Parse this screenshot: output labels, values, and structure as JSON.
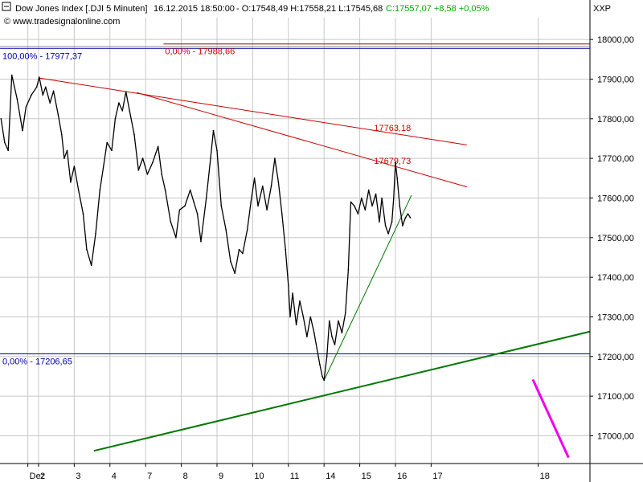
{
  "header": {
    "instrument": "Dow Jones Index [.DJI  5 Minuten]",
    "datetime": "16.12.2015 18:50:00",
    "ohlc": "- O:17548,49 H:17558,21 L:17545,68",
    "change": "C:17557,07 +8,58 +0,05%",
    "watermark": "© www.tradesignalonline.com",
    "axis_code": "XXP"
  },
  "colors": {
    "price": "#000000",
    "fib": "#0000aa",
    "resistance": "#cc0000",
    "support": "#007700",
    "channel": "#ee00ee",
    "change": "#00aa00",
    "grid": "#c8c8c8"
  },
  "chart_data": {
    "type": "line",
    "ylim": [
      16930,
      18055
    ],
    "y_ticks": [
      {
        "value": 17000,
        "label": "17000,00"
      },
      {
        "value": 17100,
        "label": "17100,00"
      },
      {
        "value": 17200,
        "label": "17200,00"
      },
      {
        "value": 17300,
        "label": "17300,00"
      },
      {
        "value": 17400,
        "label": "17400,00"
      },
      {
        "value": 17500,
        "label": "17500,00"
      },
      {
        "value": 17600,
        "label": "17600,00"
      },
      {
        "value": 17700,
        "label": "17700,00"
      },
      {
        "value": 17800,
        "label": "17800,00"
      },
      {
        "value": 17900,
        "label": "17900,00"
      },
      {
        "value": 18000,
        "label": "18000,00"
      }
    ],
    "x_ticks": [
      {
        "t": -0.3,
        "label": "Dez"
      },
      {
        "t": 0,
        "label": "2"
      },
      {
        "t": 1,
        "label": "3"
      },
      {
        "t": 2,
        "label": "4"
      },
      {
        "t": 3,
        "label": "7"
      },
      {
        "t": 4,
        "label": "8"
      },
      {
        "t": 5,
        "label": "9"
      },
      {
        "t": 6,
        "label": "10"
      },
      {
        "t": 7,
        "label": "11"
      },
      {
        "t": 8,
        "label": "14"
      },
      {
        "t": 9,
        "label": "15"
      },
      {
        "t": 10,
        "label": "16"
      },
      {
        "t": 11,
        "label": "17"
      },
      {
        "t": 14,
        "label": "18"
      }
    ],
    "xlim": [
      -1.08,
      15.45
    ],
    "price": [
      [
        -1.05,
        17800
      ],
      [
        -0.95,
        17740
      ],
      [
        -0.85,
        17720
      ],
      [
        -0.75,
        17910
      ],
      [
        -0.6,
        17850
      ],
      [
        -0.45,
        17770
      ],
      [
        -0.35,
        17830
      ],
      [
        -0.2,
        17860
      ],
      [
        -0.05,
        17880
      ],
      [
        0.02,
        17905
      ],
      [
        0.12,
        17860
      ],
      [
        0.2,
        17880
      ],
      [
        0.32,
        17840
      ],
      [
        0.42,
        17870
      ],
      [
        0.55,
        17810
      ],
      [
        0.65,
        17760
      ],
      [
        0.72,
        17700
      ],
      [
        0.8,
        17720
      ],
      [
        0.9,
        17640
      ],
      [
        1.0,
        17680
      ],
      [
        1.12,
        17620
      ],
      [
        1.25,
        17560
      ],
      [
        1.35,
        17470
      ],
      [
        1.48,
        17430
      ],
      [
        1.6,
        17510
      ],
      [
        1.72,
        17620
      ],
      [
        1.82,
        17680
      ],
      [
        1.92,
        17740
      ],
      [
        2.05,
        17720
      ],
      [
        2.15,
        17800
      ],
      [
        2.25,
        17840
      ],
      [
        2.35,
        17820
      ],
      [
        2.45,
        17868
      ],
      [
        2.55,
        17820
      ],
      [
        2.68,
        17760
      ],
      [
        2.8,
        17670
      ],
      [
        2.92,
        17700
      ],
      [
        3.05,
        17660
      ],
      [
        3.2,
        17690
      ],
      [
        3.35,
        17730
      ],
      [
        3.45,
        17660
      ],
      [
        3.55,
        17620
      ],
      [
        3.7,
        17540
      ],
      [
        3.85,
        17500
      ],
      [
        3.95,
        17570
      ],
      [
        4.1,
        17580
      ],
      [
        4.25,
        17620
      ],
      [
        4.35,
        17590
      ],
      [
        4.45,
        17560
      ],
      [
        4.55,
        17490
      ],
      [
        4.7,
        17600
      ],
      [
        4.82,
        17700
      ],
      [
        4.9,
        17770
      ],
      [
        5.0,
        17720
      ],
      [
        5.12,
        17580
      ],
      [
        5.25,
        17520
      ],
      [
        5.38,
        17440
      ],
      [
        5.5,
        17410
      ],
      [
        5.62,
        17470
      ],
      [
        5.72,
        17460
      ],
      [
        5.85,
        17520
      ],
      [
        5.95,
        17590
      ],
      [
        6.05,
        17650
      ],
      [
        6.15,
        17580
      ],
      [
        6.28,
        17630
      ],
      [
        6.4,
        17570
      ],
      [
        6.52,
        17630
      ],
      [
        6.62,
        17700
      ],
      [
        6.72,
        17640
      ],
      [
        6.82,
        17560
      ],
      [
        6.92,
        17470
      ],
      [
        7.0,
        17380
      ],
      [
        7.05,
        17300
      ],
      [
        7.12,
        17360
      ],
      [
        7.22,
        17280
      ],
      [
        7.32,
        17340
      ],
      [
        7.42,
        17300
      ],
      [
        7.52,
        17250
      ],
      [
        7.62,
        17300
      ],
      [
        7.72,
        17260
      ],
      [
        7.8,
        17220
      ],
      [
        7.88,
        17180
      ],
      [
        7.95,
        17150
      ],
      [
        8.0,
        17140
      ],
      [
        8.08,
        17200
      ],
      [
        8.15,
        17290
      ],
      [
        8.22,
        17250
      ],
      [
        8.3,
        17230
      ],
      [
        8.4,
        17290
      ],
      [
        8.5,
        17260
      ],
      [
        8.6,
        17310
      ],
      [
        8.68,
        17420
      ],
      [
        8.72,
        17520
      ],
      [
        8.75,
        17590
      ],
      [
        8.85,
        17580
      ],
      [
        8.95,
        17560
      ],
      [
        9.05,
        17600
      ],
      [
        9.15,
        17570
      ],
      [
        9.25,
        17620
      ],
      [
        9.35,
        17580
      ],
      [
        9.45,
        17610
      ],
      [
        9.55,
        17540
      ],
      [
        9.62,
        17600
      ],
      [
        9.72,
        17530
      ],
      [
        9.8,
        17510
      ],
      [
        9.9,
        17540
      ],
      [
        9.95,
        17600
      ],
      [
        10.0,
        17690
      ],
      [
        10.05,
        17650
      ],
      [
        10.12,
        17580
      ],
      [
        10.2,
        17530
      ],
      [
        10.28,
        17550
      ],
      [
        10.35,
        17560
      ],
      [
        10.42,
        17550
      ]
    ],
    "fib_levels": [
      {
        "value": 17977.37,
        "label": "100,00% - 17977,37"
      },
      {
        "value": 17206.65,
        "label": "0,00% - 17206,65"
      }
    ],
    "upper_level": {
      "value": 17988.66,
      "label": "0,00% - 17988,66",
      "from_t": 3.5
    },
    "resistance_lines": [
      {
        "from": [
          0.0,
          17903
        ],
        "to": [
          12.0,
          17734
        ],
        "label": "17763,18",
        "label_at": [
          9.4,
          17763
        ]
      },
      {
        "from": [
          2.75,
          17866
        ],
        "to": [
          12.0,
          17628
        ],
        "label": "17679,73",
        "label_at": [
          9.4,
          17680
        ]
      }
    ],
    "support_lines": [
      {
        "from": [
          1.55,
          16962
        ],
        "to": [
          15.45,
          17263
        ],
        "width": 2
      },
      {
        "from": [
          8.0,
          17140
        ],
        "to": [
          10.45,
          17607
        ],
        "width": 1
      }
    ],
    "channel_line": {
      "from": [
        13.85,
        17142
      ],
      "to": [
        14.85,
        16945
      ]
    }
  }
}
